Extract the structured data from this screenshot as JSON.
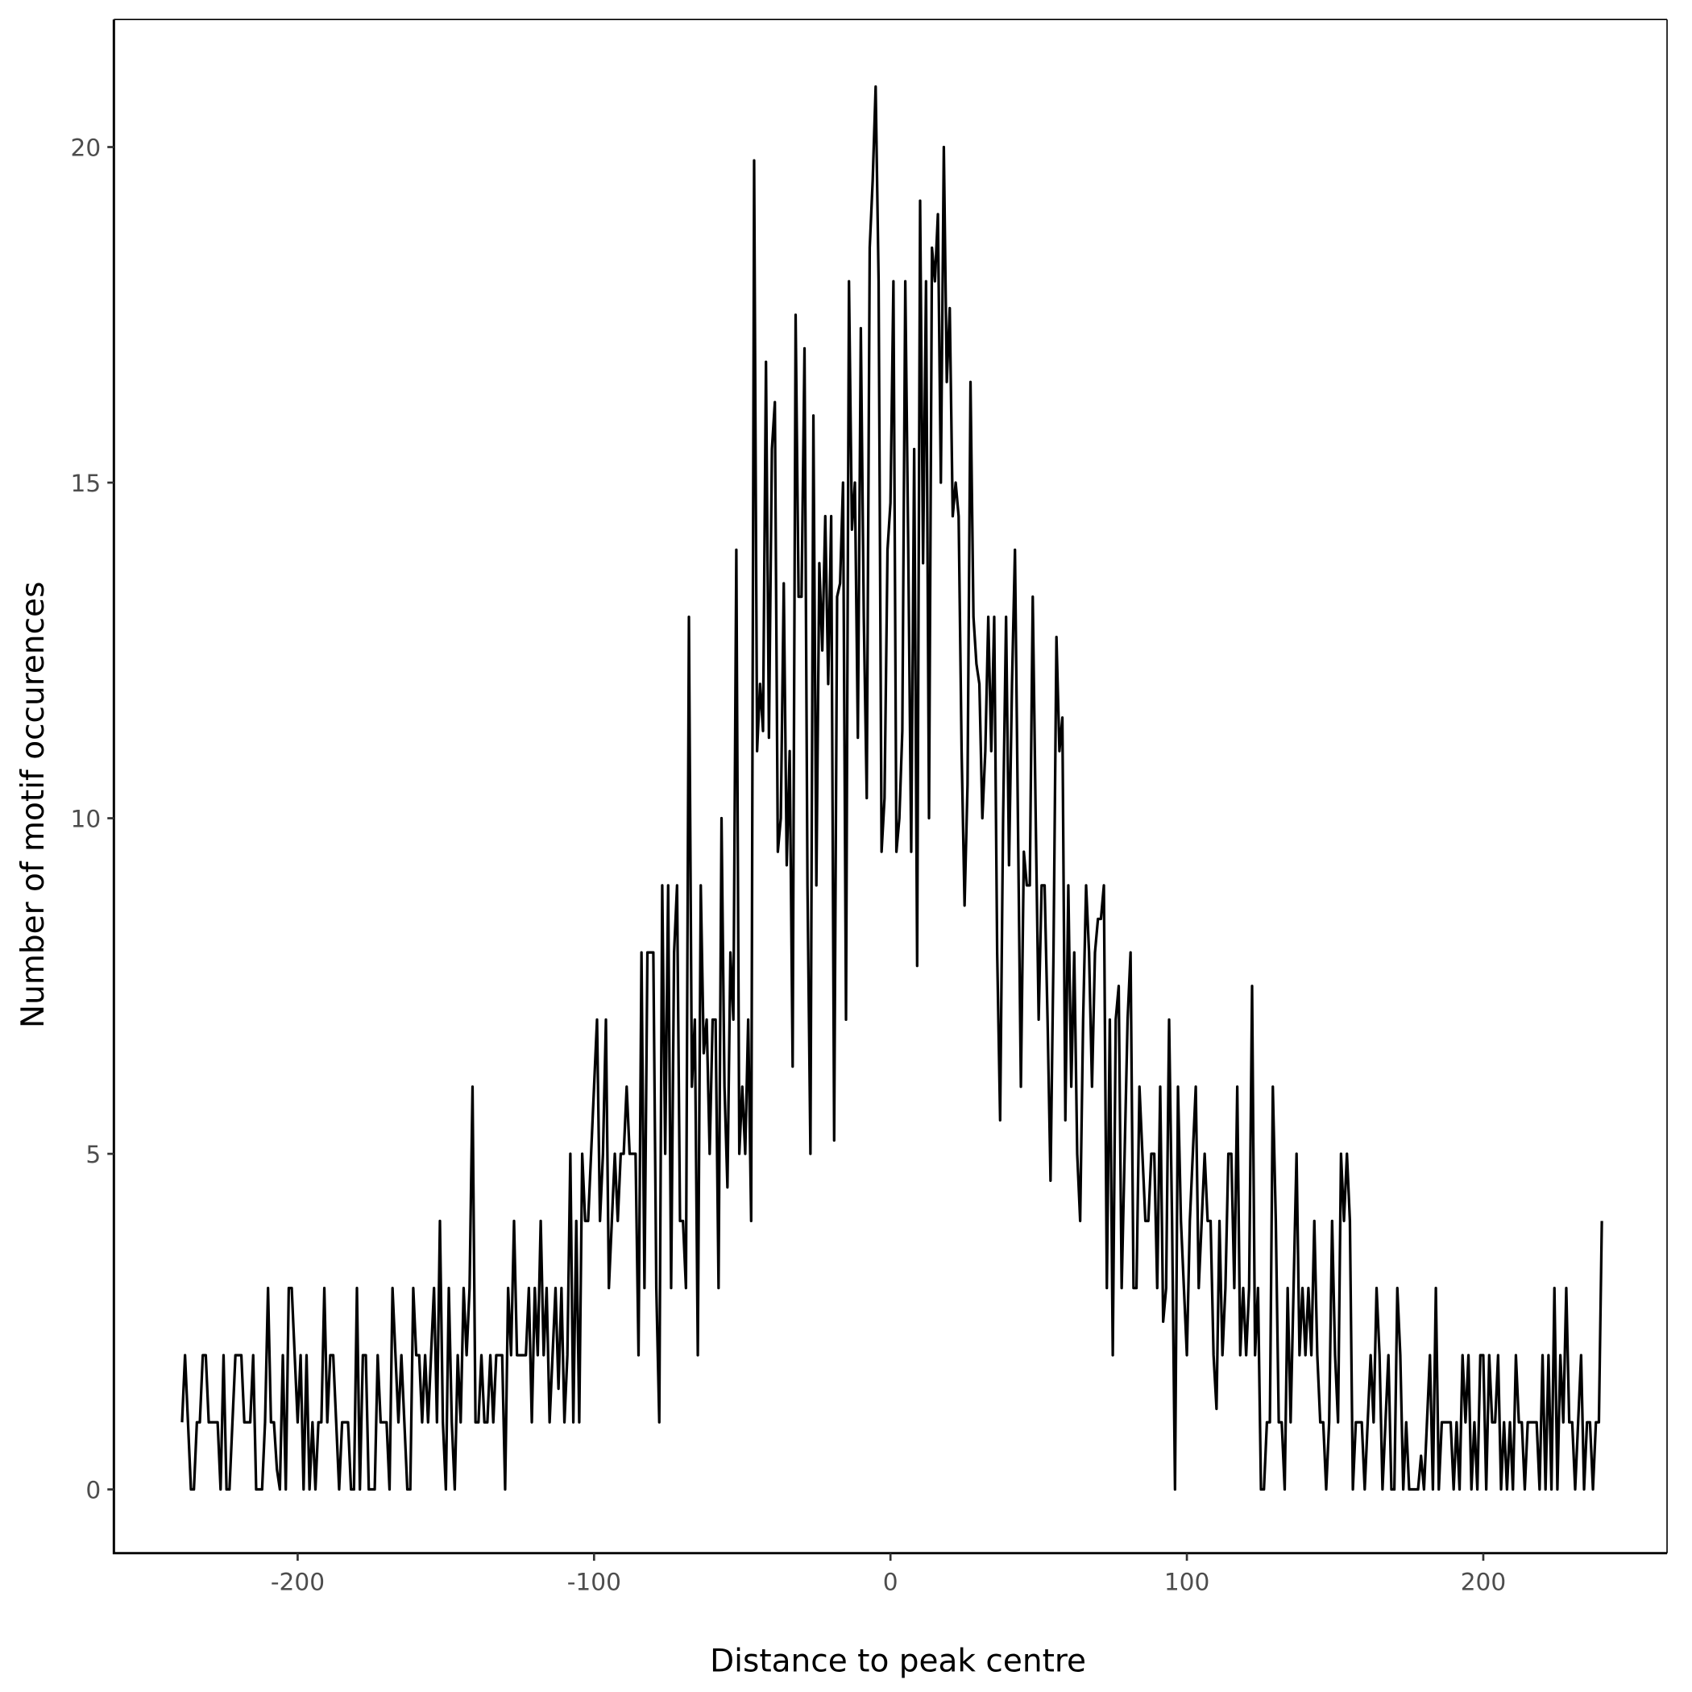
{
  "chart_data": {
    "type": "line",
    "title": "",
    "xlabel": "Distance to peak centre",
    "ylabel": "Number of motif occurences",
    "xlim": [
      -262,
      262
    ],
    "ylim": [
      -0.95,
      21.9
    ],
    "x_ticks": [
      -200,
      -100,
      0,
      100,
      200
    ],
    "x_tick_labels": [
      "-200",
      "-100",
      "0",
      "100",
      "200"
    ],
    "y_ticks": [
      0,
      5,
      10,
      15,
      20
    ],
    "y_tick_labels": [
      "0",
      "5",
      "10",
      "15",
      "20"
    ],
    "grid": false,
    "line_color": "#000000",
    "x_start": -239,
    "x_step": 1,
    "values": [
      1,
      2,
      1,
      0,
      0,
      1,
      1,
      2,
      2,
      1,
      1,
      1,
      1,
      0,
      2,
      0,
      0,
      1,
      2,
      2,
      2,
      1,
      1,
      1,
      2,
      0,
      0,
      0,
      1,
      3,
      1,
      1,
      0.3,
      0,
      2,
      0,
      3,
      3,
      2,
      1,
      2,
      0,
      2,
      0,
      1,
      0,
      1,
      1,
      3,
      1,
      2,
      2,
      1,
      0,
      1,
      1,
      1,
      0,
      0,
      3,
      0,
      2,
      2,
      0,
      0,
      0,
      2,
      1,
      1,
      1,
      0,
      3,
      2,
      1,
      2,
      1,
      0,
      0,
      3,
      2,
      2,
      1,
      2,
      1,
      2,
      3,
      1,
      4,
      1,
      0,
      3,
      1,
      0,
      2,
      1,
      3,
      2,
      3,
      6,
      1,
      1,
      2,
      1,
      1,
      2,
      1,
      2,
      2,
      2,
      0,
      3,
      2,
      4,
      2,
      2,
      2,
      2,
      3,
      1,
      3,
      2,
      4,
      2,
      3,
      1,
      2,
      3,
      1.5,
      3,
      1,
      2,
      5,
      1,
      4,
      1,
      5,
      4,
      4,
      5,
      6,
      7,
      4,
      5,
      7,
      3,
      4,
      5,
      4,
      5,
      5,
      6,
      5,
      5,
      5,
      2,
      8,
      3,
      8,
      8,
      8,
      3,
      1,
      9,
      5,
      9,
      3,
      8,
      9,
      4,
      4,
      3,
      13,
      6,
      7,
      2,
      9,
      6.5,
      7,
      5,
      7,
      7,
      3,
      10,
      6,
      4.5,
      8,
      7,
      14,
      5,
      6,
      5,
      7,
      4,
      19.8,
      11,
      12,
      11.3,
      16.8,
      11.2,
      15.5,
      16.2,
      9.5,
      10,
      13.5,
      9.3,
      11,
      6.3,
      17.5,
      13.3,
      13.3,
      17,
      9,
      5,
      16,
      9,
      13.8,
      12.5,
      14.5,
      12,
      14.5,
      5.2,
      13.3,
      13.5,
      15,
      7,
      18,
      14.3,
      15,
      11.2,
      17.3,
      13,
      10.3,
      18.5,
      19.5,
      20.9,
      18,
      9.5,
      10.3,
      14,
      14.7,
      18,
      9.5,
      10,
      11.3,
      18,
      14,
      9.5,
      15.5,
      7.8,
      19.2,
      13.8,
      18,
      10,
      18.5,
      18,
      19,
      15,
      20,
      16.5,
      17.6,
      14.5,
      15,
      14.5,
      11,
      8.7,
      10.5,
      16.5,
      13,
      12.3,
      12,
      10,
      11,
      13,
      11,
      13,
      8,
      5.5,
      10,
      13,
      9.3,
      12,
      14,
      10,
      6,
      9.5,
      9,
      9,
      13.3,
      10,
      7,
      9,
      9,
      7,
      4.6,
      8,
      12.7,
      11,
      11.5,
      5.5,
      9,
      6,
      8,
      5,
      4,
      7,
      9,
      8,
      6,
      8,
      8.5,
      8.5,
      9,
      3,
      7,
      2,
      7,
      7.5,
      3,
      5,
      7,
      8,
      3,
      3,
      6,
      5,
      4,
      4,
      5,
      5,
      3,
      6,
      2.5,
      3,
      7,
      4,
      0,
      6,
      4,
      3,
      2,
      4,
      5,
      6,
      3,
      4,
      5,
      4,
      4,
      2,
      1.2,
      4,
      2,
      3,
      5,
      5,
      3,
      6,
      2,
      3,
      2,
      3,
      7.5,
      2,
      3,
      0,
      0,
      1,
      1,
      6,
      4,
      1,
      1,
      0,
      3,
      1,
      3,
      5,
      2,
      3,
      2,
      3,
      2,
      4,
      2,
      1,
      1,
      0,
      1,
      4,
      2,
      1,
      5,
      4,
      5,
      4,
      0,
      1,
      1,
      1,
      0,
      1,
      2,
      1,
      3,
      2,
      0,
      1,
      2,
      0,
      0,
      3,
      2,
      0,
      1,
      0,
      0,
      0,
      0,
      0.5,
      0,
      1,
      2,
      0,
      3,
      0,
      1,
      1,
      1,
      1,
      0,
      1,
      0,
      2,
      1,
      2,
      0,
      1,
      0,
      2,
      2,
      0,
      2,
      1,
      1,
      2,
      0,
      1,
      0,
      1,
      0,
      2,
      1,
      1,
      0,
      1,
      1,
      1,
      1,
      0,
      2,
      0,
      2,
      0,
      3,
      0,
      2,
      1,
      3,
      1,
      1,
      0,
      1,
      2,
      0,
      1,
      1,
      0,
      1,
      1,
      4
    ]
  }
}
